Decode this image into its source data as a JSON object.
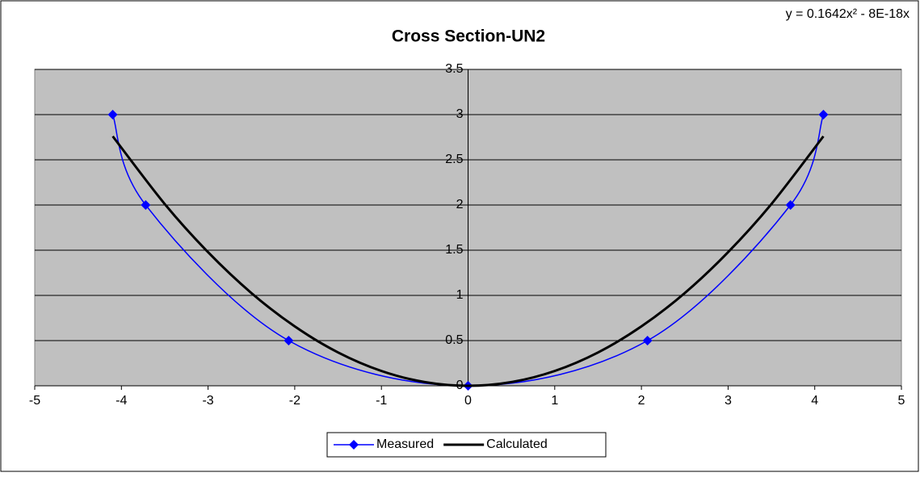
{
  "chart_data": {
    "type": "scatter",
    "title": "Cross Section-UN2",
    "annotation": "y = 0.1642x² - 8E-18x",
    "series": [
      {
        "name": "Measured",
        "color": "#0000ff",
        "marker": "diamond",
        "x": [
          -4.1,
          -3.72,
          -2.07,
          0,
          2.07,
          3.72,
          4.1
        ],
        "values": [
          3,
          2,
          0.5,
          0,
          0.5,
          2,
          3
        ]
      },
      {
        "name": "Calculated",
        "color": "#000000",
        "marker": "none",
        "x": [
          -4.1,
          -3.5,
          -3,
          -2.5,
          -2,
          -1.5,
          -1,
          -0.5,
          0,
          0.5,
          1,
          1.5,
          2,
          2.5,
          3,
          3.5,
          4.1
        ],
        "values": [
          2.76,
          2.011,
          1.478,
          1.026,
          0.657,
          0.369,
          0.164,
          0.041,
          0,
          0.041,
          0.164,
          0.369,
          0.657,
          1.026,
          1.478,
          2.011,
          2.76
        ]
      }
    ],
    "xlim": [
      -5,
      5
    ],
    "xticks": [
      -5,
      -4,
      -3,
      -2,
      -1,
      0,
      1,
      2,
      3,
      4,
      5
    ],
    "ylim": [
      0,
      3.5
    ],
    "yticks": [
      0,
      0.5,
      1,
      1.5,
      2,
      2.5,
      3,
      3.5
    ],
    "grid": true,
    "legend": "bottom"
  }
}
